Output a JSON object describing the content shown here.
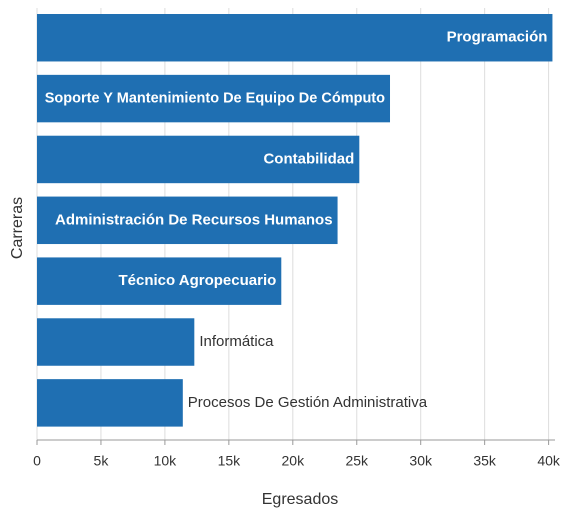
{
  "chart_data": {
    "type": "bar",
    "orientation": "horizontal",
    "x_label": "Egresados",
    "y_label": "Carreras",
    "categories": [
      "Programación",
      "Soporte Y Mantenimiento De Equipo De Cómputo",
      "Contabilidad",
      "Administración De Recursos Humanos",
      "Técnico Agropecuario",
      "Informática",
      "Procesos De Gestión Administrativa"
    ],
    "values": [
      40300,
      27600,
      25200,
      23500,
      19100,
      12300,
      11400
    ],
    "color": "#1f6fb2",
    "xlim": [
      0,
      40500
    ],
    "xticks": [
      0,
      {
        "value": 5000,
        "label": "5k"
      },
      {
        "value": 10000,
        "label": "10k"
      },
      {
        "value": 15000,
        "label": "15k"
      },
      {
        "value": 20000,
        "label": "20k"
      },
      {
        "value": 25000,
        "label": "25k"
      },
      {
        "value": 30000,
        "label": "30k"
      },
      {
        "value": 35000,
        "label": "35k"
      },
      {
        "value": 40000,
        "label": "40k"
      }
    ],
    "grid": true
  }
}
